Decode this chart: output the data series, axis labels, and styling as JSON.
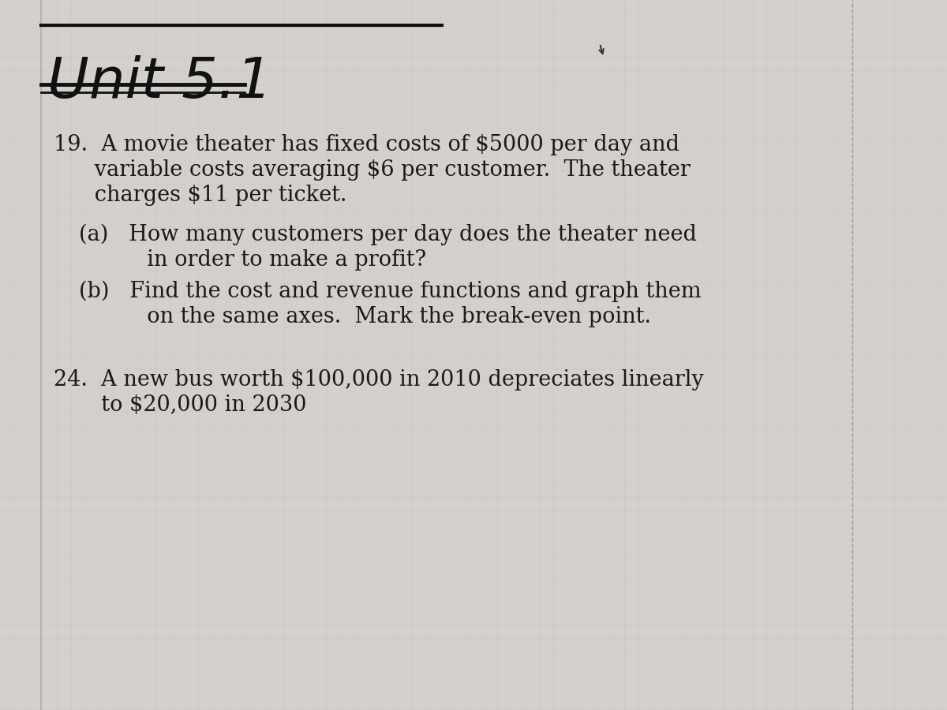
{
  "background_color": "#c8c8c8",
  "page_background": "#d4d0cc",
  "unit_title": "Unit 5.1",
  "problem_19_text": [
    "19.  A movie theater has fixed costs of $5000 per day and",
    "      variable costs averaging $6 per customer.  The theater",
    "      charges $11 per ticket."
  ],
  "problem_19a_text": [
    "(a)   How many customers per day does the theater need",
    "          in order to make a profit?"
  ],
  "problem_19b_text": [
    "(b)   Find the cost and revenue functions and graph them",
    "          on the same axes.  Mark the break-even point."
  ],
  "problem_24_text": [
    "24.  A new bus worth $100,000 in 2010 depreciates linearly",
    "       to $20,000 in 2030"
  ],
  "text_color": "#1a1a1a",
  "handwritten_color": "#111111",
  "line_color": "#111111"
}
